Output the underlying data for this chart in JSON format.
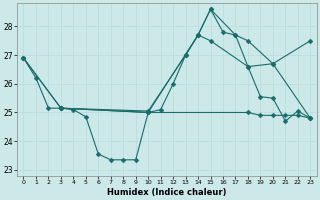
{
  "xlabel": "Humidex (Indice chaleur)",
  "bg_color": "#cce8e8",
  "line_color": "#1a6b6b",
  "xlim": [
    -0.5,
    23.5
  ],
  "ylim": [
    22.8,
    28.8
  ],
  "yticks": [
    23,
    24,
    25,
    26,
    27,
    28
  ],
  "xticks": [
    0,
    1,
    2,
    3,
    4,
    5,
    6,
    7,
    8,
    9,
    10,
    11,
    12,
    13,
    14,
    15,
    16,
    17,
    18,
    19,
    20,
    21,
    22,
    23
  ],
  "series": [
    {
      "x": [
        0,
        1,
        2,
        3,
        4,
        5,
        6,
        7,
        8,
        9,
        10,
        11,
        12,
        13,
        14,
        15,
        16,
        17,
        18,
        19,
        20,
        21,
        22,
        23
      ],
      "y": [
        26.9,
        26.2,
        25.15,
        25.15,
        25.1,
        24.85,
        23.55,
        23.35,
        23.35,
        23.35,
        25.0,
        25.1,
        26.0,
        27.0,
        27.7,
        28.6,
        27.8,
        27.7,
        26.6,
        25.55,
        25.5,
        24.7,
        25.05,
        24.8
      ]
    },
    {
      "x": [
        0,
        3,
        10,
        13,
        14,
        15,
        17,
        18,
        20,
        23
      ],
      "y": [
        26.9,
        25.15,
        25.05,
        27.0,
        27.7,
        28.6,
        27.7,
        27.5,
        26.7,
        27.5
      ]
    },
    {
      "x": [
        0,
        3,
        10,
        14,
        15,
        18,
        20,
        23
      ],
      "y": [
        26.9,
        25.15,
        25.0,
        27.7,
        27.5,
        26.6,
        26.7,
        24.8
      ]
    },
    {
      "x": [
        3,
        10,
        18,
        19,
        20,
        21,
        22,
        23
      ],
      "y": [
        25.15,
        25.0,
        25.0,
        24.9,
        24.9,
        24.9,
        24.9,
        24.8
      ]
    }
  ]
}
